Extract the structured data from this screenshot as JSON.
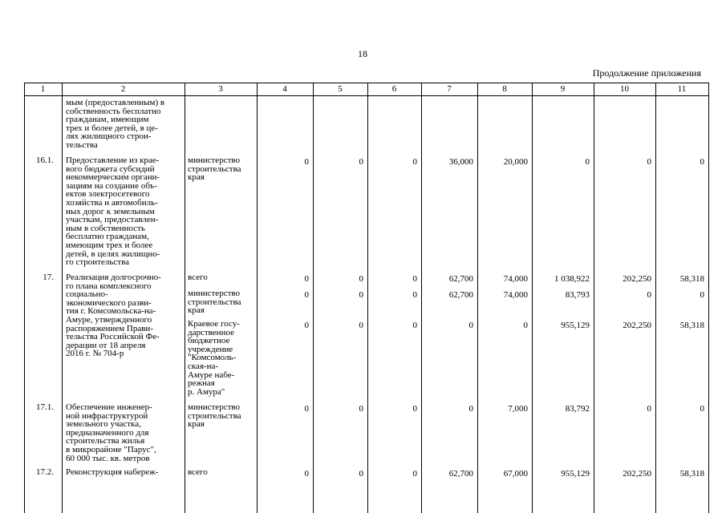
{
  "page_number": "18",
  "continuation": "Продолжение приложения",
  "table": {
    "header": [
      "1",
      "2",
      "3",
      "4",
      "5",
      "6",
      "7",
      "8",
      "9",
      "10",
      "11"
    ],
    "rows": [
      {
        "name": [
          "мым (предоставленным) в",
          "собственность бесплатно",
          "гражданам, имеющим",
          "трех и более детей, в це-",
          "лях жилищного строи-",
          "тельства"
        ]
      },
      {
        "number": "16.1.",
        "name": [
          "Предоставление из крае-",
          "вого бюджета субсидий",
          "некоммерческим органи-",
          "зациям на создание объ-",
          "ектов электросетевого",
          "хозяйства и автомобиль-",
          "ных дорог к земельным",
          "участкам, предоставлен-",
          "ным в собственность",
          "бесплатно гражданам,",
          "имеющим трех и более",
          "детей, в целях жилищно-",
          "го строительства"
        ],
        "entries": [
          {
            "org": [
              "министерство",
              "строительства",
              "края"
            ],
            "values": [
              "0",
              "0",
              "0",
              "36,000",
              "20,000",
              "0",
              "0",
              "0"
            ]
          }
        ]
      },
      {
        "number": "17.",
        "name": [
          "Реализация долгосрочно-",
          "го плана комплексного",
          "социально-",
          "экономического разви-",
          "тия г. Комсомольска-на-",
          "Амуре, утвержденного",
          "распоряжением Прави-",
          "тельства Российской Фе-",
          "дерации от 18 апреля",
          "2016 г. № 704-р"
        ],
        "entries": [
          {
            "org": [
              "всего"
            ],
            "values": [
              "0",
              "0",
              "0",
              "62,700",
              "74,000",
              "1 038,922",
              "202,250",
              "58,318"
            ]
          },
          {
            "org": [
              "министерство",
              "строительства",
              "края"
            ],
            "values": [
              "0",
              "0",
              "0",
              "62,700",
              "74,000",
              "83,793",
              "0",
              "0"
            ]
          },
          {
            "org": [
              "Краевое госу-",
              "дарственное",
              "бюджетное",
              "учреждение",
              "\"Комсомоль-",
              "ская-на-",
              "Амуре набе-",
              "режная",
              "р. Амура\""
            ],
            "values": [
              "0",
              "0",
              "0",
              "0",
              "0",
              "955,129",
              "202,250",
              "58,318"
            ]
          }
        ]
      },
      {
        "number": "17.1.",
        "name": [
          "Обеспечение инженер-",
          "ной инфраструктурой",
          "земельного участка,",
          "предназначенного для",
          "строительства жилья",
          "в микрорайоне \"Парус\",",
          "60 000 тыс. кв. метров"
        ],
        "entries": [
          {
            "org": [
              "министерство",
              "строительства",
              "края"
            ],
            "values": [
              "0",
              "0",
              "0",
              "0",
              "7,000",
              "83,792",
              "0",
              "0"
            ]
          }
        ]
      },
      {
        "number": "17.2.",
        "name": [
          "Реконструкция набереж-"
        ],
        "entries": [
          {
            "org": [
              "всего"
            ],
            "values": [
              "0",
              "0",
              "0",
              "62,700",
              "67,000",
              "955,129",
              "202,250",
              "58,318"
            ]
          }
        ]
      }
    ]
  }
}
